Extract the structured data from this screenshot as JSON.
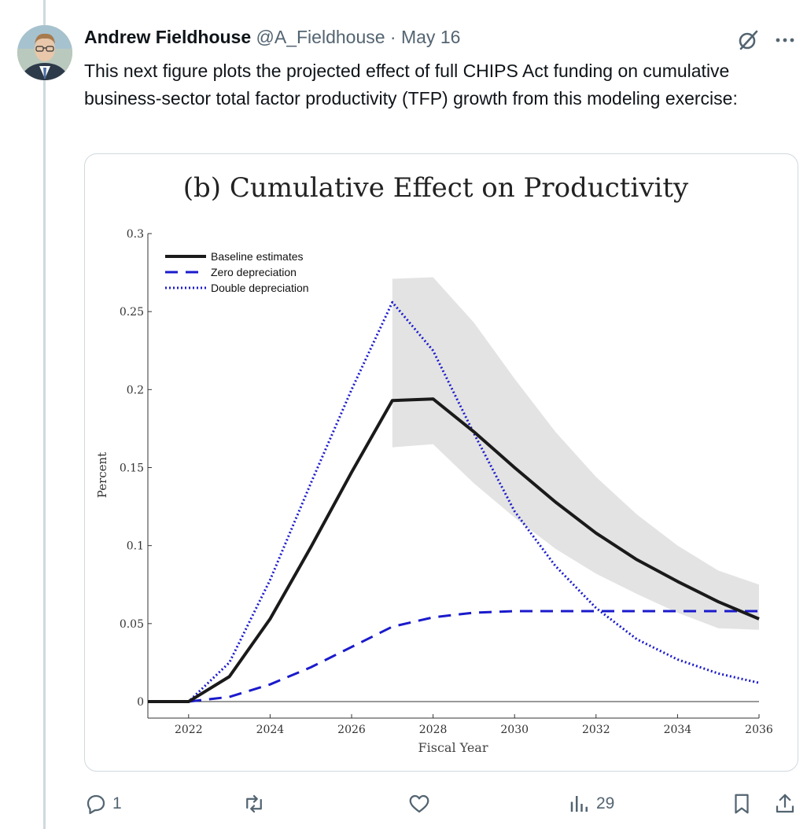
{
  "tweet": {
    "author_name": "Andrew Fieldhouse",
    "author_handle": "@A_Fieldhouse",
    "separator": "·",
    "date": "May 16",
    "text": "This next figure plots the projected effect of full CHIPS Act funding on cumulative business-sector total factor productivity (TFP) growth from this modeling exercise:"
  },
  "actions": {
    "reply_count": "1",
    "views_count": "29",
    "icons": [
      "reply-icon",
      "retweet-icon",
      "like-icon",
      "views-icon",
      "bookmark-icon",
      "share-icon"
    ]
  },
  "colors": {
    "baseline": "#1a1a1a",
    "zero_dep": "#1a1acc",
    "double_dep": "#1a1acc",
    "band": "#e3e3e3",
    "meta_text": "#536471"
  },
  "chart_data": {
    "type": "line",
    "title": "(b) Cumulative Effect on Productivity",
    "xlabel": "Fiscal Year",
    "ylabel": "Percent",
    "xlim": [
      2021,
      2036
    ],
    "ylim": [
      0,
      0.3
    ],
    "xticks": [
      "2022",
      "2024",
      "2026",
      "2028",
      "2030",
      "2032",
      "2034",
      "2036"
    ],
    "yticks": [
      "0",
      "0.05",
      "0.1",
      "0.15",
      "0.2",
      "0.25",
      "0.3"
    ],
    "legend_position": "top-left",
    "grid": false,
    "x": [
      2021,
      2022,
      2023,
      2024,
      2025,
      2026,
      2027,
      2028,
      2029,
      2030,
      2031,
      2032,
      2033,
      2034,
      2035,
      2036
    ],
    "series": [
      {
        "name": "Baseline estimates",
        "style": "solid",
        "values": [
          0,
          0,
          0.016,
          0.053,
          0.099,
          0.147,
          0.193,
          0.194,
          0.173,
          0.15,
          0.128,
          0.108,
          0.091,
          0.077,
          0.064,
          0.053
        ]
      },
      {
        "name": "Zero depreciation",
        "style": "dashed",
        "values": [
          0,
          0,
          0.003,
          0.011,
          0.022,
          0.035,
          0.048,
          0.054,
          0.057,
          0.058,
          0.058,
          0.058,
          0.058,
          0.058,
          0.058,
          0.058
        ]
      },
      {
        "name": "Double depreciation",
        "style": "dotted",
        "values": [
          0,
          0,
          0.025,
          0.078,
          0.14,
          0.2,
          0.256,
          0.225,
          0.172,
          0.122,
          0.087,
          0.06,
          0.04,
          0.027,
          0.018,
          0.012
        ]
      }
    ],
    "band": {
      "x": [
        2027,
        2028,
        2029,
        2030,
        2031,
        2032,
        2033,
        2034,
        2035,
        2036
      ],
      "upper": [
        0.271,
        0.272,
        0.243,
        0.207,
        0.173,
        0.144,
        0.12,
        0.1,
        0.084,
        0.075
      ],
      "lower": [
        0.163,
        0.165,
        0.14,
        0.118,
        0.098,
        0.082,
        0.069,
        0.057,
        0.047,
        0.046
      ]
    }
  }
}
